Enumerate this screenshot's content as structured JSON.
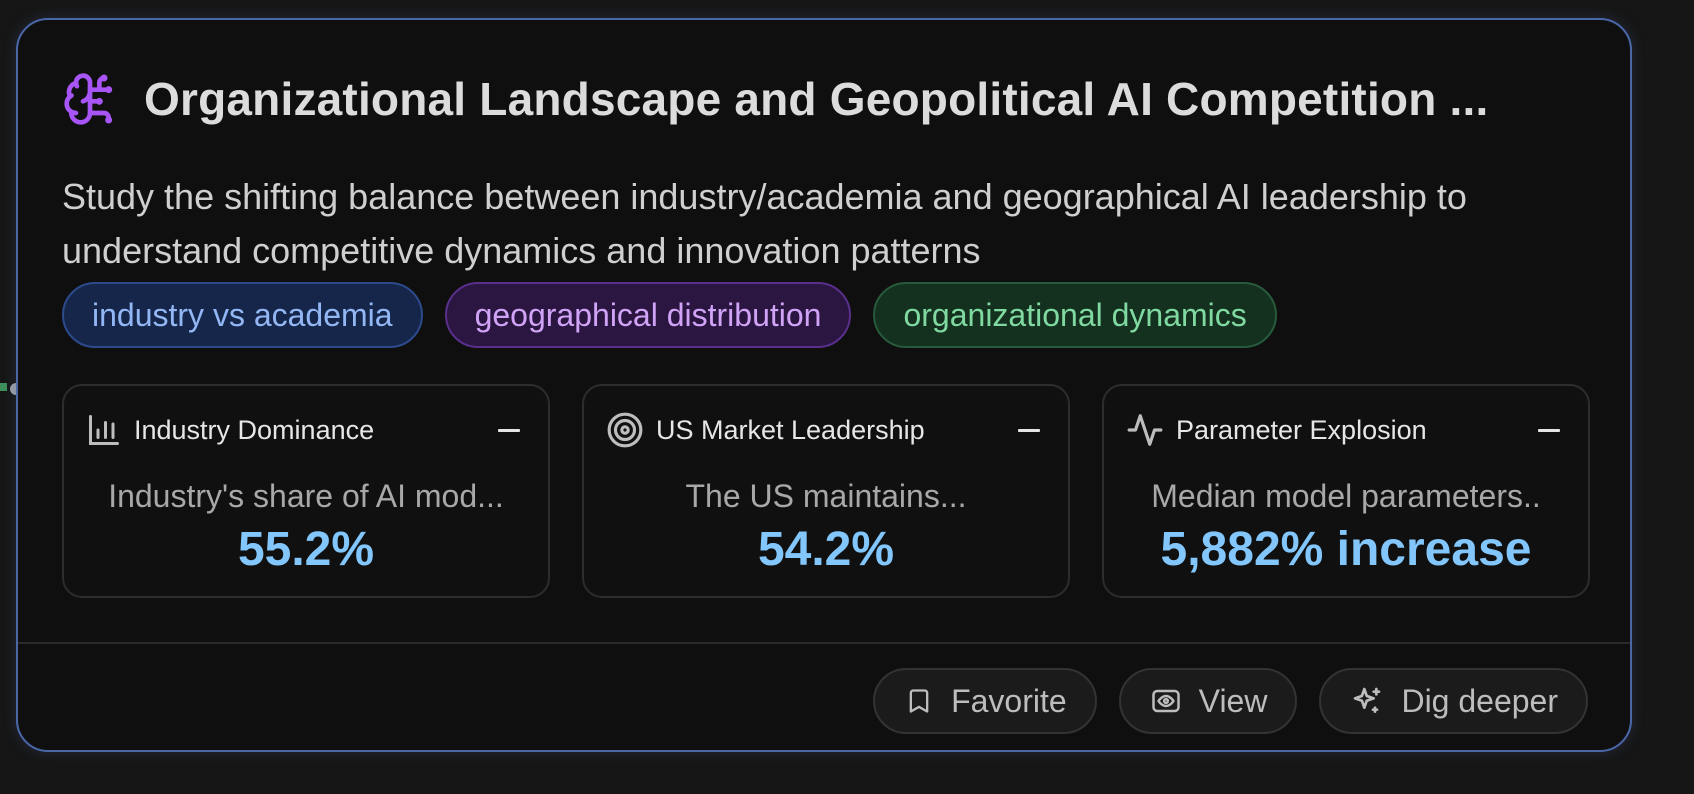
{
  "card": {
    "title": "Organizational Landscape and Geopolitical AI Competition ...",
    "title_icon": "brain-icon",
    "description": "Study the shifting balance between industry/academia and geographical AI leadership to understand competitive dynamics and innovation patterns",
    "accent_color": "#a855f7",
    "border_color": "#4a67a8"
  },
  "tags": [
    {
      "label": "industry vs academia",
      "color": "#93b7f4"
    },
    {
      "label": "geographical distribution",
      "color": "#d0a3f6"
    },
    {
      "label": "organizational dynamics",
      "color": "#7fd9a0"
    }
  ],
  "metrics": [
    {
      "icon": "bar-chart-icon",
      "label": "Industry Dominance",
      "description": "Industry's share of AI mod...",
      "value": "55.2%"
    },
    {
      "icon": "target-icon",
      "label": "US Market Leadership",
      "description": "The US maintains...",
      "value": "54.2%"
    },
    {
      "icon": "activity-icon",
      "label": "Parameter Explosion",
      "description": "Median model parameters..",
      "value": "5,882% increase"
    }
  ],
  "metric_value_color": "#82c6fb",
  "actions": {
    "favorite": {
      "label": "Favorite",
      "icon": "bookmark-icon"
    },
    "view": {
      "label": "View",
      "icon": "eye-icon"
    },
    "dig_deeper": {
      "label": "Dig deeper",
      "icon": "sparkles-icon"
    }
  }
}
